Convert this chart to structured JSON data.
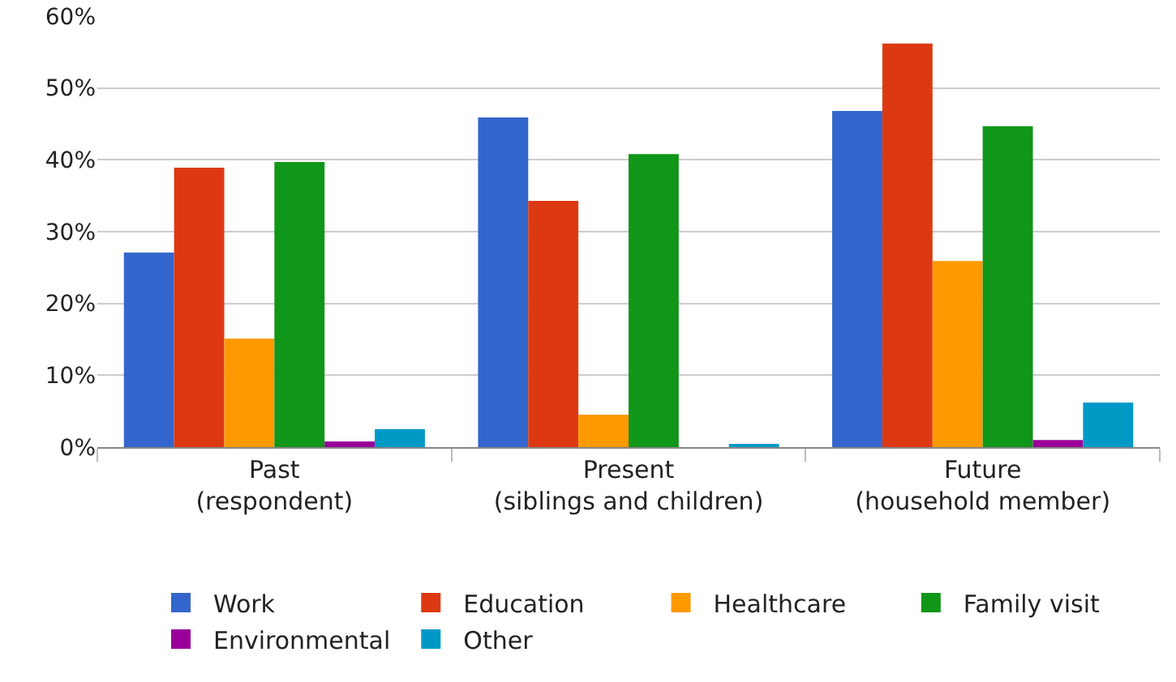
{
  "chart_data": {
    "type": "bar",
    "categories": [
      "Past\n(respondent)",
      "Present\n(siblings and children)",
      "Future\n(household member)"
    ],
    "series": [
      {
        "name": "Work",
        "color": "#3366cc",
        "values": [
          27.1,
          45.9,
          46.8
        ]
      },
      {
        "name": "Education",
        "color": "#dc3912",
        "values": [
          38.9,
          34.3,
          56.2
        ]
      },
      {
        "name": "Healthcare",
        "color": "#ff9900",
        "values": [
          15.1,
          4.5,
          25.9
        ]
      },
      {
        "name": "Family visit",
        "color": "#109618",
        "values": [
          39.7,
          40.8,
          44.7
        ]
      },
      {
        "name": "Environmental",
        "color": "#990099",
        "values": [
          0.8,
          0,
          1.0
        ]
      },
      {
        "name": "Other",
        "color": "#0099c6",
        "values": [
          2.5,
          0.3,
          6.2
        ]
      }
    ],
    "ylim": [
      0,
      60
    ],
    "yticks": [
      {
        "value": 0,
        "label": "0%"
      },
      {
        "value": 10,
        "label": "10%"
      },
      {
        "value": 20,
        "label": "20%"
      },
      {
        "value": 30,
        "label": "30%"
      },
      {
        "value": 40,
        "label": "40%"
      },
      {
        "value": 50,
        "label": "50%"
      },
      {
        "value": 60,
        "label": "60%"
      }
    ],
    "grid": "y",
    "legend": "bottom"
  }
}
